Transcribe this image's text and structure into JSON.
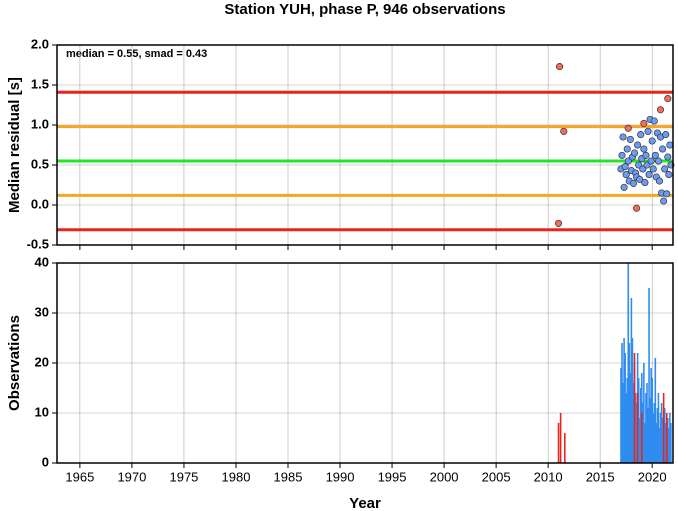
{
  "chart_data": [
    {
      "type": "scatter",
      "title": "Station YUH, phase P, 946 observations",
      "y_label": "Median residual [s]",
      "annotation": "median = 0.55, smad = 0.43",
      "xlim": [
        1962.8,
        2022
      ],
      "xticks": [
        1965,
        1970,
        1975,
        1980,
        1985,
        1990,
        1995,
        2000,
        2005,
        2010,
        2015,
        2020
      ],
      "ylim": [
        -0.5,
        2.0
      ],
      "yticks": [
        {
          "value": 2.0,
          "label": "2.0"
        },
        1.5,
        {
          "value": 1.0,
          "label": "1.0"
        },
        0.5,
        {
          "value": 0.0,
          "label": "0.0"
        },
        -0.5
      ],
      "grid": true,
      "lines": [
        {
          "value": 1.41,
          "color": "#e8251c"
        },
        {
          "value": 0.98,
          "color": "#f5a623"
        },
        {
          "value": 0.55,
          "color": "#22e622"
        },
        {
          "value": 0.12,
          "color": "#f5a623"
        },
        {
          "value": -0.31,
          "color": "#e8251c"
        }
      ],
      "series": [
        {
          "color": "#6b9cf5",
          "x": [
            2017.0,
            2017.1,
            2017.2,
            2017.3,
            2017.4,
            2017.5,
            2017.6,
            2017.7,
            2017.8,
            2017.9,
            2018.0,
            2018.1,
            2018.2,
            2018.3,
            2018.4,
            2018.5,
            2018.6,
            2018.7,
            2018.8,
            2018.9,
            2019.0,
            2019.1,
            2019.2,
            2019.3,
            2019.4,
            2019.5,
            2019.6,
            2019.7,
            2019.8,
            2019.9,
            2020.0,
            2020.1,
            2020.2,
            2020.3,
            2020.4,
            2020.5,
            2020.6,
            2020.7,
            2020.8,
            2020.9,
            2021.0,
            2021.1,
            2021.2,
            2021.3,
            2021.4,
            2021.5,
            2021.6,
            2021.7,
            2021.8
          ],
          "values": [
            0.45,
            0.62,
            0.85,
            0.22,
            0.48,
            0.38,
            0.7,
            0.55,
            0.3,
            0.82,
            0.43,
            0.6,
            0.27,
            0.65,
            0.4,
            0.35,
            0.75,
            0.5,
            0.32,
            0.88,
            0.58,
            0.45,
            0.7,
            0.28,
            0.62,
            0.5,
            0.92,
            0.38,
            1.07,
            0.55,
            0.8,
            0.45,
            1.05,
            0.62,
            0.35,
            0.9,
            0.55,
            0.3,
            0.85,
            0.15,
            0.7,
            0.05,
            0.45,
            0.88,
            0.14,
            0.6,
            0.38,
            0.75,
            0.5
          ]
        },
        {
          "color": "#f46a5c",
          "x": [
            2011.1,
            2011.5,
            2011.0,
            2017.7,
            2019.2,
            2018.5,
            2020.8,
            2021.5
          ],
          "values": [
            1.73,
            0.92,
            -0.23,
            0.96,
            1.02,
            -0.04,
            1.19,
            1.33
          ]
        }
      ]
    },
    {
      "type": "bar",
      "x_label": "Year",
      "y_label": "Observations",
      "xlim": [
        1962.8,
        2022
      ],
      "xticks": [
        1965,
        1970,
        1975,
        1980,
        1985,
        1990,
        1995,
        2000,
        2005,
        2010,
        2015,
        2020
      ],
      "ylim": [
        0,
        40
      ],
      "yticks": [
        0,
        10,
        20,
        30,
        40
      ],
      "grid": true,
      "series": [
        {
          "color": "#2f8cf0",
          "x": [
            2017.0,
            2017.1,
            2017.2,
            2017.3,
            2017.4,
            2017.5,
            2017.6,
            2017.7,
            2017.8,
            2017.9,
            2018.0,
            2018.1,
            2018.2,
            2018.3,
            2018.4,
            2018.5,
            2018.6,
            2018.7,
            2018.8,
            2018.9,
            2019.0,
            2019.1,
            2019.2,
            2019.3,
            2019.4,
            2019.5,
            2019.6,
            2019.7,
            2019.8,
            2019.9,
            2020.0,
            2020.1,
            2020.2,
            2020.3,
            2020.4,
            2020.5,
            2020.6,
            2020.7,
            2020.8,
            2020.9,
            2021.0,
            2021.1,
            2021.2,
            2021.3,
            2021.4,
            2021.5,
            2021.6,
            2021.7,
            2021.8
          ],
          "values": [
            19,
            24,
            16,
            25,
            22,
            14,
            17,
            40,
            24,
            18,
            33,
            25,
            16,
            20,
            14,
            12,
            22,
            17,
            9,
            15,
            18,
            12,
            20,
            8,
            14,
            16,
            11,
            35,
            13,
            19,
            17,
            10,
            12,
            21,
            8,
            11,
            14,
            7,
            10,
            12,
            9,
            6,
            11,
            8,
            5,
            9,
            7,
            10,
            8
          ]
        },
        {
          "color": "#e8251c",
          "x": [
            2011.0,
            2011.2,
            2011.6,
            2018.3,
            2018.6,
            2019.0,
            2021.1,
            2021.4
          ],
          "values": [
            8,
            10,
            6,
            22,
            14,
            10,
            14,
            10
          ]
        }
      ]
    }
  ]
}
